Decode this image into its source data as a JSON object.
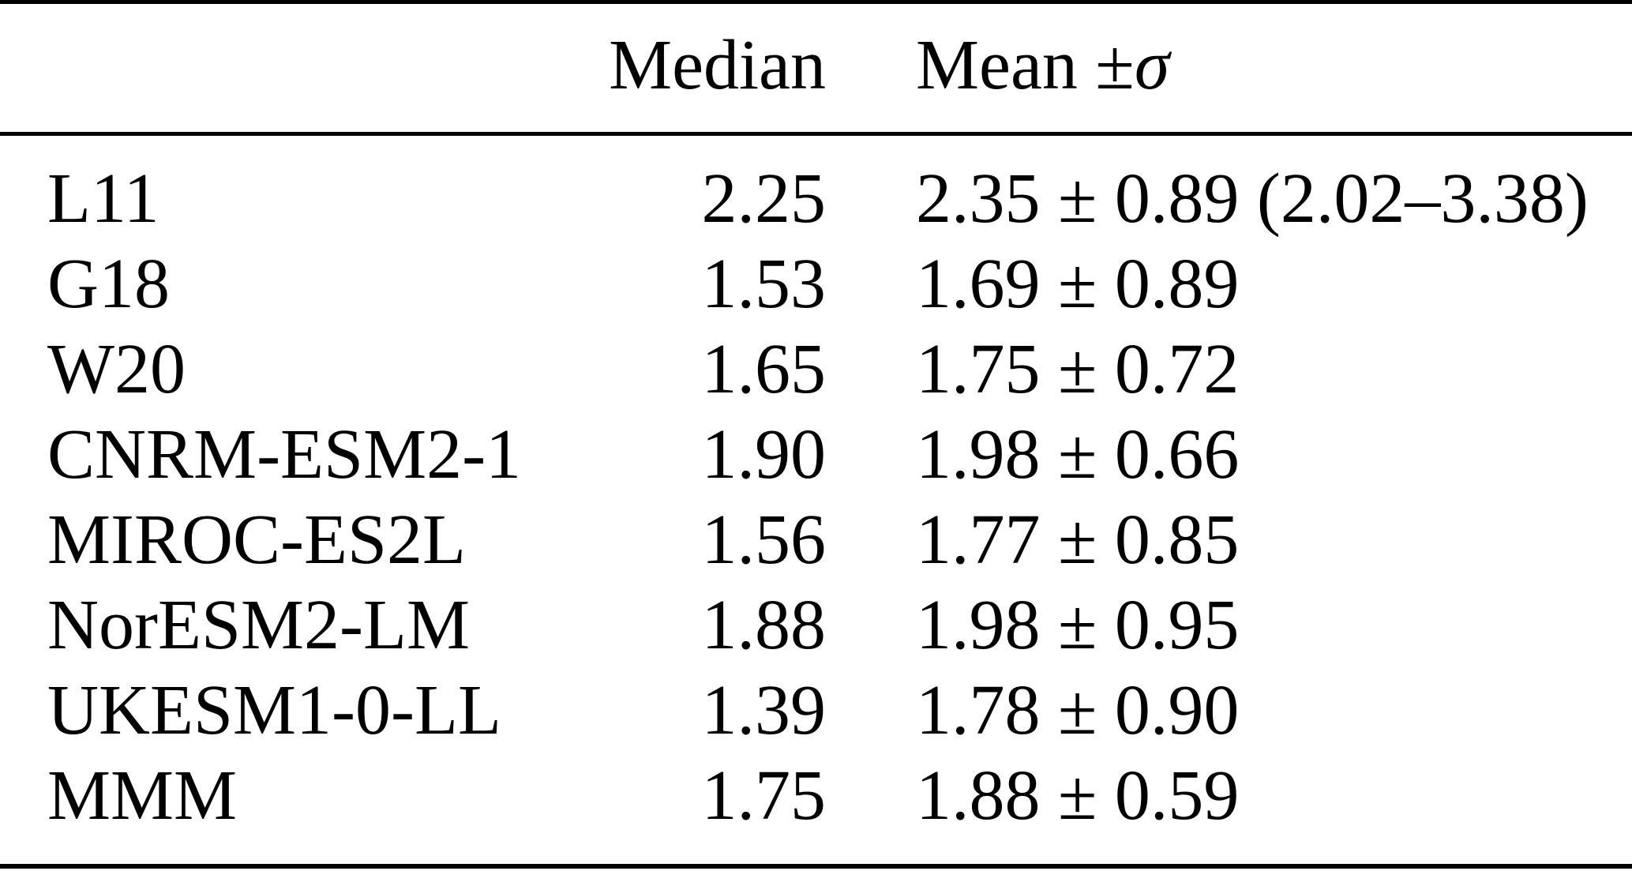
{
  "colors": {
    "background": "#ffffff",
    "text": "#000000",
    "rule": "#000000"
  },
  "table": {
    "headers": {
      "model": "",
      "median": "Median",
      "mean_prefix": "Mean ±",
      "mean_sigma": "σ"
    },
    "rows": [
      {
        "model": "L11",
        "median": "2.25",
        "mean": "2.35 ± 0.89 (2.02–3.38)"
      },
      {
        "model": "G18",
        "median": "1.53",
        "mean": "1.69 ± 0.89"
      },
      {
        "model": "W20",
        "median": "1.65",
        "mean": "1.75 ± 0.72"
      },
      {
        "model": "CNRM-ESM2-1",
        "median": "1.90",
        "mean": "1.98 ± 0.66"
      },
      {
        "model": "MIROC-ES2L",
        "median": "1.56",
        "mean": "1.77 ± 0.85"
      },
      {
        "model": "NorESM2-LM",
        "median": "1.88",
        "mean": "1.98 ± 0.95"
      },
      {
        "model": "UKESM1-0-LL",
        "median": "1.39",
        "mean": "1.78 ± 0.90"
      },
      {
        "model": "MMM",
        "median": "1.75",
        "mean": "1.88 ± 0.59"
      }
    ]
  }
}
